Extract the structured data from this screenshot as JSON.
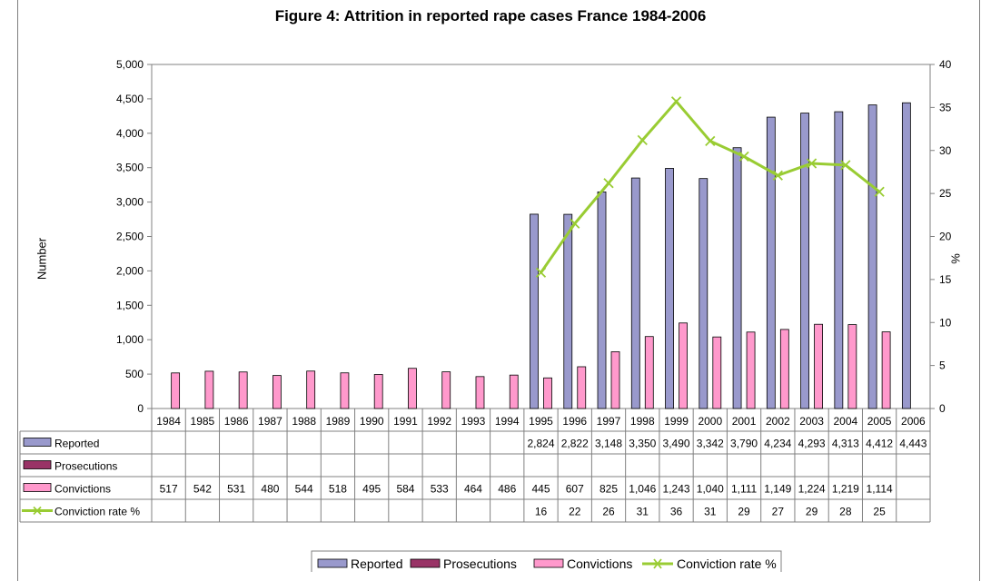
{
  "chart_data": {
    "type": "bar",
    "title": "Figure 4: Attrition in reported rape cases France 1984-2006",
    "ylabel": "Number",
    "ylabel_right": "%",
    "ylim": [
      0,
      5000
    ],
    "ylim_right": [
      0,
      40
    ],
    "y_ticks": [
      "0",
      "500",
      "1,000",
      "1,500",
      "2,000",
      "2,500",
      "3,000",
      "3,500",
      "4,000",
      "4,500",
      "5,000"
    ],
    "y_ticks_right": [
      "0",
      "5",
      "10",
      "15",
      "20",
      "25",
      "30",
      "35",
      "40"
    ],
    "categories": [
      "1984",
      "1985",
      "1986",
      "1987",
      "1988",
      "1989",
      "1990",
      "1991",
      "1992",
      "1993",
      "1994",
      "1995",
      "1996",
      "1997",
      "1998",
      "1999",
      "2000",
      "2001",
      "2002",
      "2003",
      "2004",
      "2005",
      "2006"
    ],
    "series": [
      {
        "name": "Reported",
        "type": "bar",
        "color": "#9999cc",
        "values": [
          null,
          null,
          null,
          null,
          null,
          null,
          null,
          null,
          null,
          null,
          null,
          2824,
          2822,
          3148,
          3350,
          3490,
          3342,
          3790,
          4234,
          4293,
          4313,
          4412,
          4443
        ],
        "labels": [
          "",
          "",
          "",
          "",
          "",
          "",
          "",
          "",
          "",
          "",
          "",
          "2,824",
          "2,822",
          "3,148",
          "3,350",
          "3,490",
          "3,342",
          "3,790",
          "4,234",
          "4,293",
          "4,313",
          "4,412",
          "4,443"
        ]
      },
      {
        "name": "Prosecutions",
        "type": "bar",
        "color": "#993366",
        "values": [
          null,
          null,
          null,
          null,
          null,
          null,
          null,
          null,
          null,
          null,
          null,
          null,
          null,
          null,
          null,
          null,
          null,
          null,
          null,
          null,
          null,
          null,
          null
        ],
        "labels": [
          "",
          "",
          "",
          "",
          "",
          "",
          "",
          "",
          "",
          "",
          "",
          "",
          "",
          "",
          "",
          "",
          "",
          "",
          "",
          "",
          "",
          "",
          ""
        ]
      },
      {
        "name": "Convictions",
        "type": "bar",
        "color": "#ff99cc",
        "values": [
          517,
          542,
          531,
          480,
          544,
          518,
          495,
          584,
          533,
          464,
          486,
          445,
          607,
          825,
          1046,
          1243,
          1040,
          1111,
          1149,
          1224,
          1219,
          1114,
          null
        ],
        "labels": [
          "517",
          "542",
          "531",
          "480",
          "544",
          "518",
          "495",
          "584",
          "533",
          "464",
          "486",
          "445",
          "607",
          "825",
          "1,046",
          "1,243",
          "1,040",
          "1,111",
          "1,149",
          "1,224",
          "1,219",
          "1,114",
          ""
        ]
      },
      {
        "name": "Conviction rate %",
        "type": "line",
        "axis": "right",
        "color": "#99cc33",
        "values": [
          null,
          null,
          null,
          null,
          null,
          null,
          null,
          null,
          null,
          null,
          null,
          16,
          22,
          26,
          31,
          36,
          31,
          29,
          27,
          29,
          28,
          25,
          null
        ],
        "plot_values": [
          null,
          null,
          null,
          null,
          null,
          null,
          null,
          null,
          null,
          null,
          null,
          15.8,
          21.5,
          26.2,
          31.2,
          35.7,
          31.1,
          29.3,
          27.1,
          28.5,
          28.3,
          25.2,
          null
        ],
        "labels": [
          "",
          "",
          "",
          "",
          "",
          "",
          "",
          "",
          "",
          "",
          "",
          "16",
          "22",
          "26",
          "31",
          "36",
          "31",
          "29",
          "27",
          "29",
          "28",
          "25",
          ""
        ]
      }
    ],
    "legend": "bottom",
    "data_table": true
  }
}
